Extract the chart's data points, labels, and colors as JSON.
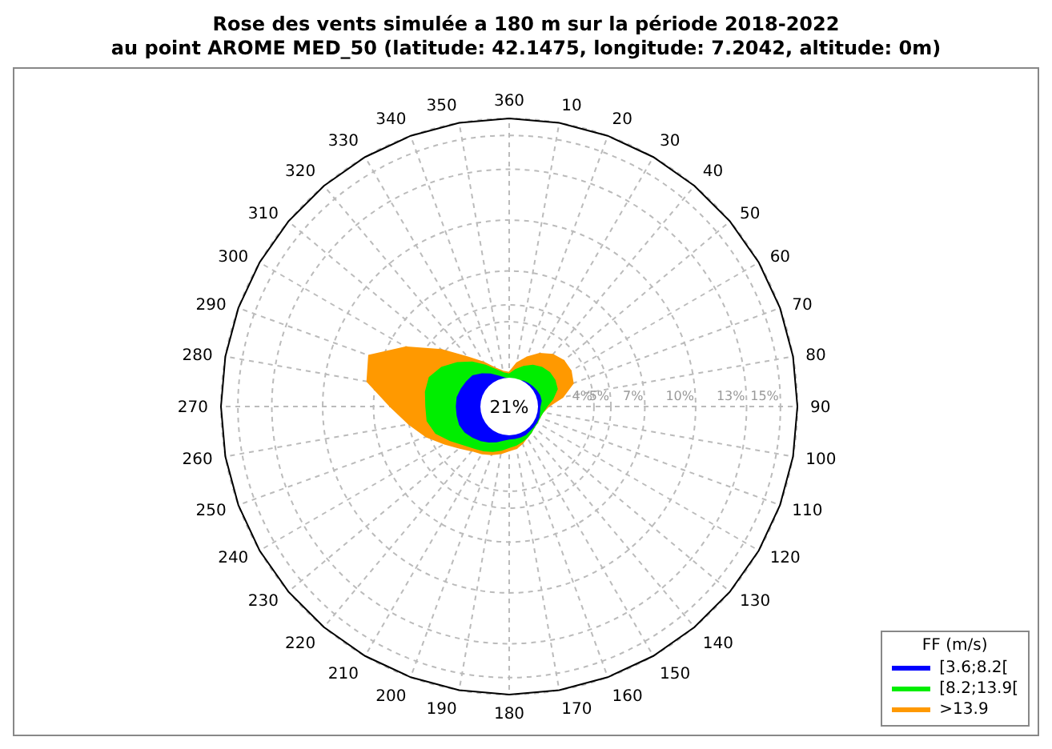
{
  "chart_data": {
    "type": "radar",
    "title": "Rose des vents simulée a 180 m sur la période 2018-2022",
    "subtitle": "au point AROME MED_50 (latitude: 42.1475, longitude: 7.2042, altitude: 0m)",
    "categories": [
      "360",
      "10",
      "20",
      "30",
      "40",
      "50",
      "60",
      "70",
      "80",
      "90",
      "100",
      "110",
      "120",
      "130",
      "140",
      "150",
      "160",
      "170",
      "180",
      "190",
      "200",
      "210",
      "220",
      "230",
      "240",
      "250",
      "260",
      "270",
      "280",
      "290",
      "300",
      "310",
      "320",
      "330",
      "340",
      "350"
    ],
    "series": [
      {
        "name": "[3.6;8.2[",
        "color": "#0000ff",
        "values": [
          0.6,
          0.6,
          0.6,
          0.7,
          0.75,
          0.8,
          0.85,
          0.9,
          0.9,
          0.8,
          0.8,
          0.85,
          0.85,
          0.85,
          0.85,
          0.9,
          0.9,
          0.9,
          0.9,
          1.0,
          1.2,
          1.4,
          1.6,
          1.8,
          2.0,
          2.1,
          2.1,
          2.1,
          2.1,
          2.0,
          1.9,
          1.8,
          1.5,
          1.2,
          0.9,
          0.7
        ]
      },
      {
        "name": "[8.2;13.9[",
        "color": "#00ee00",
        "values": [
          0.9,
          1.2,
          1.5,
          1.8,
          2.0,
          2.1,
          2.1,
          2.0,
          1.6,
          1.2,
          1.0,
          0.9,
          0.9,
          0.9,
          1.0,
          1.1,
          1.2,
          1.3,
          1.4,
          1.6,
          1.8,
          2.0,
          2.2,
          2.5,
          3.0,
          3.6,
          3.9,
          3.9,
          4.0,
          4.0,
          3.6,
          3.0,
          2.4,
          1.8,
          1.3,
          1.0
        ]
      },
      {
        "name": ">13.9",
        "color": "#ff9900",
        "values": [
          1.0,
          1.6,
          2.1,
          2.6,
          3.0,
          3.2,
          3.2,
          3.0,
          2.2,
          1.3,
          1.0,
          0.9,
          0.9,
          0.9,
          1.0,
          1.1,
          1.3,
          1.5,
          1.6,
          1.8,
          2.0,
          2.2,
          2.4,
          2.8,
          3.4,
          4.2,
          5.0,
          6.0,
          7.5,
          7.8,
          6.0,
          4.2,
          2.8,
          2.0,
          1.4,
          1.1
        ]
      }
    ],
    "ylim": [
      -1,
      16
    ],
    "yticks": [
      {
        "value": 4,
        "label": "4%"
      },
      {
        "value": 5,
        "label": "5%"
      },
      {
        "value": 7,
        "label": "7%"
      },
      {
        "value": 10,
        "label": "10%"
      },
      {
        "value": 13,
        "label": "13%"
      },
      {
        "value": 15,
        "label": "15%"
      }
    ],
    "grid": true,
    "legend": "bottom right",
    "legend_title": "FF (m/s)",
    "annotations": [
      "21%"
    ]
  }
}
